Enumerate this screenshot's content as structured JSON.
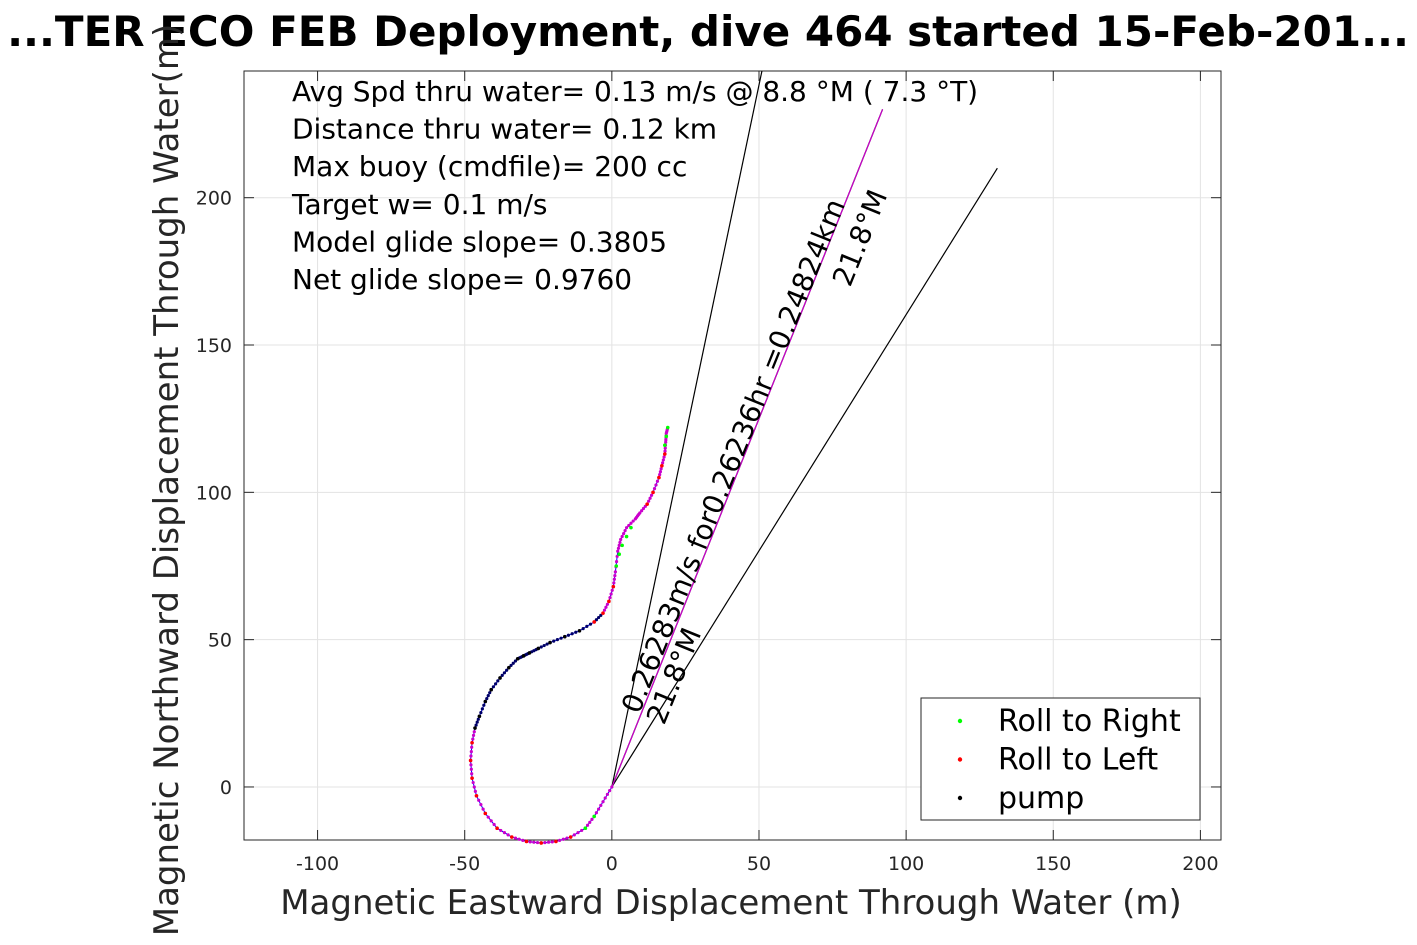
{
  "chart_data": {
    "type": "line",
    "title": "...TER ECO FEB Deployment, dive 464 started 15-Feb-201...",
    "xlabel": "Magnetic Eastward Displacement Through Water (m)",
    "ylabel": "Magnetic Northward Displacement Through Water(m)",
    "xlim": [
      -125,
      207
    ],
    "ylim": [
      -18,
      243
    ],
    "xticks": [
      -100,
      -50,
      0,
      50,
      100,
      150,
      200
    ],
    "yticks": [
      0,
      50,
      100,
      150,
      200
    ],
    "grid": true,
    "annotations": [
      "Avg Spd thru water=  0.13 m/s @   8.8 °M (  7.3 °T)",
      "Distance thru water=  0.12 km",
      "Max buoy (cmdfile)= 200 cc",
      "Target w= 0.1 m/s",
      "Model glide slope= 0.3805",
      "Net glide slope= 0.9760"
    ],
    "rotated_labels": [
      "0.26283m/s for0.26236hr =0.24824km",
      "21.8°M",
      "21.8°M"
    ],
    "reference_lines": [
      {
        "x": [
          0,
          51
        ],
        "y": [
          0,
          243
        ]
      },
      {
        "x": [
          0,
          92
        ],
        "y": [
          0,
          230
        ]
      },
      {
        "x": [
          0,
          131
        ],
        "y": [
          0,
          210
        ]
      }
    ],
    "track": {
      "x": [
        0,
        -3,
        -6,
        -9,
        -14,
        -19,
        -24,
        -29,
        -34,
        -39,
        -43,
        -46,
        -47.5,
        -48,
        -47.5,
        -46.5,
        -45,
        -43,
        -41,
        -38,
        -35,
        -32,
        -30,
        -28,
        -25,
        -21,
        -16,
        -11,
        -6,
        -3,
        -1,
        0.5,
        1.2,
        2,
        3,
        5,
        8,
        9.5,
        12,
        14,
        16,
        17,
        18,
        18.3,
        18.5,
        19
      ],
      "y": [
        0,
        -5,
        -10,
        -14,
        -17,
        -18.5,
        -19,
        -18.5,
        -17,
        -14,
        -9,
        -3,
        3,
        9,
        15,
        20,
        24,
        29,
        33,
        37,
        40.5,
        43.5,
        44.5,
        45.5,
        47,
        49,
        51,
        53,
        56,
        59,
        63,
        68,
        73,
        80,
        84,
        88,
        91,
        93,
        96,
        100,
        105,
        109,
        113,
        117,
        120,
        122
      ]
    },
    "series": [
      {
        "name": "Roll to Right",
        "color": "#00ff00",
        "x": [
          -6,
          -9,
          1.5,
          2.5,
          3.5,
          5,
          6.5,
          18,
          18.5,
          19
        ],
        "y": [
          -10,
          -14,
          75,
          79,
          82,
          85,
          88,
          116,
          119,
          122
        ]
      },
      {
        "name": "Roll to Left",
        "color": "#ff0000",
        "x": [
          -14,
          -19,
          -24,
          -29,
          -34,
          -39,
          -43,
          -46,
          -47.5,
          -48,
          -47.5,
          -6,
          -3,
          -1,
          0.5,
          12,
          14,
          16,
          17,
          18
        ],
        "y": [
          -17,
          -18.5,
          -19,
          -18.5,
          -17,
          -14,
          -9,
          -3,
          3,
          9,
          15,
          56,
          59,
          63,
          68,
          96,
          100,
          105,
          109,
          113
        ]
      },
      {
        "name": "pump",
        "color": "#000000",
        "x": [
          -46.5,
          -45,
          -43,
          -41,
          -38,
          -35,
          -32,
          -30,
          -28,
          -25,
          -21,
          -16,
          -11
        ],
        "y": [
          20,
          24,
          29,
          33,
          37,
          40.5,
          43.5,
          44.5,
          45.5,
          47,
          49,
          51,
          53
        ]
      }
    ],
    "legend_location": "bottom-right",
    "colors": {
      "track": "#0000ff",
      "path_dots": "#cc00cc",
      "glide_line": "#cc00cc",
      "pump_dots": "#000066"
    }
  }
}
